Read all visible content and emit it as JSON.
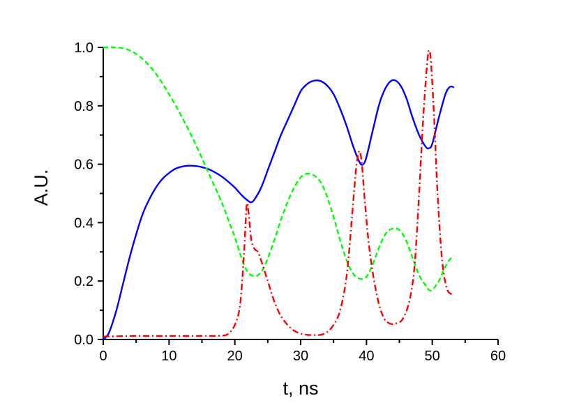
{
  "chart_data": {
    "type": "line",
    "xlabel": "t, ns",
    "ylabel": "A.U.",
    "xlim": [
      0,
      60
    ],
    "ylim": [
      0,
      1.0
    ],
    "x_ticks": [
      "0",
      "10",
      "20",
      "30",
      "40",
      "50",
      "60"
    ],
    "y_ticks": [
      "0.0",
      "0.2",
      "0.4",
      "0.6",
      "0.8",
      "1.0"
    ],
    "grid": false,
    "legend": "none",
    "series": [
      {
        "color": "#0000ff",
        "style": "solid",
        "points": [
          [
            0,
            0.0
          ],
          [
            0.5,
            0.01
          ],
          [
            1,
            0.03
          ],
          [
            2,
            0.1
          ],
          [
            3,
            0.19
          ],
          [
            4,
            0.28
          ],
          [
            5,
            0.36
          ],
          [
            6,
            0.43
          ],
          [
            7,
            0.48
          ],
          [
            8,
            0.52
          ],
          [
            9,
            0.55
          ],
          [
            10,
            0.57
          ],
          [
            11,
            0.585
          ],
          [
            12,
            0.592
          ],
          [
            13,
            0.595
          ],
          [
            14,
            0.594
          ],
          [
            15,
            0.59
          ],
          [
            16,
            0.583
          ],
          [
            17,
            0.572
          ],
          [
            18,
            0.558
          ],
          [
            19,
            0.54
          ],
          [
            20,
            0.52
          ],
          [
            21,
            0.495
          ],
          [
            22,
            0.475
          ],
          [
            22.5,
            0.47
          ],
          [
            23,
            0.48
          ],
          [
            24,
            0.52
          ],
          [
            25,
            0.58
          ],
          [
            26,
            0.64
          ],
          [
            27,
            0.7
          ],
          [
            28,
            0.75
          ],
          [
            29,
            0.8
          ],
          [
            30,
            0.85
          ],
          [
            31,
            0.875
          ],
          [
            32,
            0.886
          ],
          [
            33,
            0.885
          ],
          [
            34,
            0.87
          ],
          [
            35,
            0.84
          ],
          [
            36,
            0.79
          ],
          [
            37,
            0.73
          ],
          [
            38,
            0.66
          ],
          [
            39,
            0.605
          ],
          [
            39.5,
            0.6
          ],
          [
            40,
            0.625
          ],
          [
            41,
            0.72
          ],
          [
            42,
            0.81
          ],
          [
            43,
            0.865
          ],
          [
            44,
            0.888
          ],
          [
            45,
            0.875
          ],
          [
            46,
            0.83
          ],
          [
            47,
            0.76
          ],
          [
            48,
            0.7
          ],
          [
            49,
            0.66
          ],
          [
            49.5,
            0.655
          ],
          [
            50,
            0.67
          ],
          [
            51,
            0.76
          ],
          [
            52,
            0.84
          ],
          [
            52.7,
            0.865
          ],
          [
            53.3,
            0.863
          ]
        ]
      },
      {
        "color": "#00ff00",
        "style": "dashed",
        "points": [
          [
            0,
            1.0
          ],
          [
            2,
            1.0
          ],
          [
            4,
            0.99
          ],
          [
            6,
            0.96
          ],
          [
            8,
            0.91
          ],
          [
            10,
            0.84
          ],
          [
            12,
            0.76
          ],
          [
            14,
            0.67
          ],
          [
            16,
            0.57
          ],
          [
            18,
            0.47
          ],
          [
            19,
            0.41
          ],
          [
            20,
            0.35
          ],
          [
            21,
            0.28
          ],
          [
            21.7,
            0.24
          ],
          [
            22.5,
            0.22
          ],
          [
            23.5,
            0.22
          ],
          [
            24.5,
            0.25
          ],
          [
            26,
            0.34
          ],
          [
            27,
            0.41
          ],
          [
            28,
            0.47
          ],
          [
            29,
            0.52
          ],
          [
            30,
            0.555
          ],
          [
            31,
            0.568
          ],
          [
            32,
            0.562
          ],
          [
            33,
            0.54
          ],
          [
            34,
            0.49
          ],
          [
            35,
            0.42
          ],
          [
            36,
            0.34
          ],
          [
            37,
            0.27
          ],
          [
            38,
            0.225
          ],
          [
            39,
            0.208
          ],
          [
            40,
            0.215
          ],
          [
            41,
            0.26
          ],
          [
            42,
            0.32
          ],
          [
            43,
            0.365
          ],
          [
            44,
            0.38
          ],
          [
            45,
            0.375
          ],
          [
            46,
            0.34
          ],
          [
            47,
            0.28
          ],
          [
            48,
            0.22
          ],
          [
            49,
            0.185
          ],
          [
            49.5,
            0.17
          ],
          [
            50,
            0.17
          ],
          [
            51,
            0.2
          ],
          [
            52,
            0.25
          ],
          [
            52.7,
            0.275
          ],
          [
            53.3,
            0.285
          ]
        ]
      },
      {
        "color": "#ff0000",
        "style": "dashdot",
        "points": [
          [
            0,
            0.01
          ],
          [
            5,
            0.012
          ],
          [
            10,
            0.012
          ],
          [
            15,
            0.012
          ],
          [
            18,
            0.013
          ],
          [
            19,
            0.02
          ],
          [
            20,
            0.05
          ],
          [
            20.8,
            0.12
          ],
          [
            21.4,
            0.3
          ],
          [
            21.8,
            0.46
          ],
          [
            22.1,
            0.43
          ],
          [
            22.5,
            0.34
          ],
          [
            23,
            0.31
          ],
          [
            23.5,
            0.3
          ],
          [
            24,
            0.27
          ],
          [
            25,
            0.2
          ],
          [
            26,
            0.13
          ],
          [
            27,
            0.08
          ],
          [
            28,
            0.05
          ],
          [
            29,
            0.03
          ],
          [
            30,
            0.02
          ],
          [
            31,
            0.016
          ],
          [
            32,
            0.015
          ],
          [
            33,
            0.016
          ],
          [
            34,
            0.025
          ],
          [
            35,
            0.05
          ],
          [
            36,
            0.1
          ],
          [
            37,
            0.22
          ],
          [
            37.8,
            0.42
          ],
          [
            38.4,
            0.58
          ],
          [
            38.9,
            0.645
          ],
          [
            39.3,
            0.6
          ],
          [
            39.8,
            0.46
          ],
          [
            40.5,
            0.3
          ],
          [
            41.5,
            0.16
          ],
          [
            42.5,
            0.08
          ],
          [
            43.5,
            0.055
          ],
          [
            44.5,
            0.055
          ],
          [
            45.5,
            0.07
          ],
          [
            46.5,
            0.13
          ],
          [
            47.3,
            0.25
          ],
          [
            48,
            0.5
          ],
          [
            48.6,
            0.75
          ],
          [
            49.2,
            0.94
          ],
          [
            49.5,
            0.99
          ],
          [
            49.8,
            0.95
          ],
          [
            50.3,
            0.75
          ],
          [
            50.8,
            0.5
          ],
          [
            51.5,
            0.27
          ],
          [
            52.3,
            0.17
          ],
          [
            53.3,
            0.155
          ]
        ]
      }
    ]
  }
}
